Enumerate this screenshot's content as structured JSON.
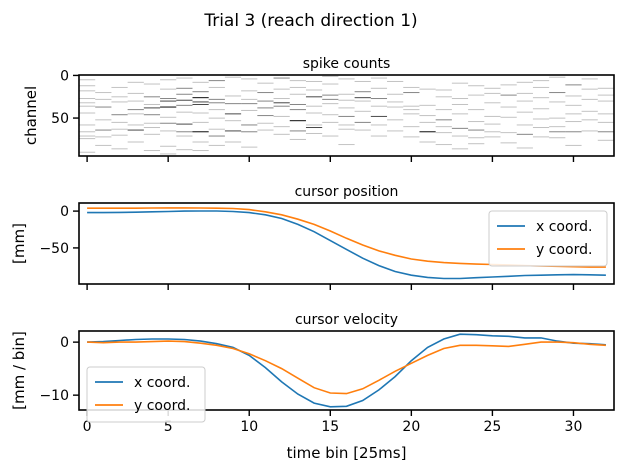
{
  "chart_data": [
    {
      "type": "heatmap",
      "suptitle": "Trial 3 (reach direction 1)",
      "title": "spike counts",
      "ylabel": "channel",
      "xlabel": "",
      "n_bins": 33,
      "n_channels": 95,
      "yticks": [
        0,
        50
      ],
      "ytick_labels": [
        "0",
        "50"
      ],
      "max_count": 4,
      "nonzero_by_bin": [
        "5:1 12:1 18:1 27:1 32:1 36:1 44:1 58:1 66:1 71:1 74:1 90:1",
        "20:1 28:1 37:2 52:1 64:2 72:1 82:1",
        "14:1 25:1 31:1 46:2 55:1 63:1 70:1 86:1",
        "8:1 21:1 30:1 40:2 45:1 58:1 64:3 78:1",
        "10:1 25:2 34:1 38:3 46:2 56:1 61:1 69:1 88:1",
        "5:1 16:1 27:2 30:3 37:4 49:1 56:2 65:1 83:1 92:1",
        "3:1 15:2 22:2 29:3 35:2 43:1 57:3 66:2 71:1 87:1",
        "8:1 19:2 26:4 31:3 34:3 44:1 55:1 66:4 78:1 88:1",
        "6:2 14:1 28:2 32:2 40:1 50:1 63:1 71:2 82:1",
        "2:1 24:1 33:2 45:3 53:1 65:3 78:1",
        "4:1 18:1 28:1 33:2 41:1 58:2 66:2 84:1",
        "9:1 20:2 30:2 38:2 47:2 56:1 64:1",
        "3:2 16:1 27:1 32:3 36:2 48:1 60:1 69:1",
        "6:1 14:1 22:1 34:2 40:2 53:4 65:2 75:1",
        "7:1 17:1 25:3 36:1 44:1 58:1 61:3 68:1",
        "1:1 10:1 23:2 28:2 33:1 46:1 55:1 71:1",
        "4:1 22:1 29:1 38:1 48:2 58:1 63:1 81:1",
        "7:1 19:2 26:3 30:1 42:1 55:2 64:1",
        "3:1 15:1 27:2 36:1 48:3 58:1 71:1",
        "7:1 22:1 31:1 37:1 52:1 65:1",
        "14:1 20:2 36:1 40:1 45:1 60:1 72:1",
        "16:1 35:1 47:1 55:1 66:4 78:1",
        "17:1 25:1 40:1 52:2 60:1 67:1 81:1",
        "9:1 27:1 34:1 45:1 62:2 71:1 86:1",
        "12:1 23:1 40:1 54:1 64:2 73:1 80:1",
        "15:1 21:1 32:1 48:1 57:1 66:1 72:1",
        "11:1 23:2 37:1 49:1 67:1 79:1",
        "8:1 21:1 30:1 43:1 58:1 69:2 85:1",
        "6:1 14:1 26:1 39:1 51:1 61:1 72:1",
        "2:1 20:2 31:1 50:1 60:1 66:2 73:1",
        "11:2 24:1 35:1 45:1 54:1 66:2 82:1",
        "4:1 16:1 28:1 42:1 52:1 65:1",
        "15:1 23:1 30:1 45:1 55:1 66:2 76:1"
      ]
    },
    {
      "type": "line",
      "title": "cursor position",
      "ylabel": "[mm]",
      "xlabel": "",
      "ylim": [
        -99,
        11
      ],
      "yticks": [
        0,
        -50
      ],
      "ytick_labels": [
        "0",
        "−50"
      ],
      "legend_position": "right",
      "x": [
        0,
        1,
        2,
        3,
        4,
        5,
        6,
        7,
        8,
        9,
        10,
        11,
        12,
        13,
        14,
        15,
        16,
        17,
        18,
        19,
        20,
        21,
        22,
        23,
        24,
        25,
        26,
        27,
        28,
        29,
        30,
        31,
        32
      ],
      "series": [
        {
          "name": "x coord.",
          "color": "#1f77b4",
          "values": [
            -2,
            -2,
            -1.8,
            -1.5,
            -1,
            -0.5,
            0,
            0.2,
            0.2,
            -0.5,
            -2,
            -5,
            -10,
            -18,
            -28,
            -40,
            -52,
            -64,
            -74,
            -82,
            -87,
            -90,
            -91.5,
            -91.5,
            -90.5,
            -89.5,
            -88.5,
            -87.5,
            -87,
            -86.5,
            -86.3,
            -86.5,
            -87
          ]
        },
        {
          "name": "y coord.",
          "color": "#ff7f0e",
          "values": [
            4,
            4,
            4,
            4,
            4.2,
            4.3,
            4.3,
            4.2,
            4,
            3.5,
            2,
            -1,
            -5,
            -11,
            -18,
            -27,
            -37,
            -46,
            -54,
            -60,
            -65,
            -68,
            -70,
            -71,
            -72,
            -72.5,
            -73,
            -74,
            -74.5,
            -75,
            -75.5,
            -76,
            -76
          ]
        }
      ]
    },
    {
      "type": "line",
      "title": "cursor velocity",
      "ylabel": "[mm / bin]",
      "xlabel": "time bin [25ms]",
      "ylim": [
        -12.8,
        2.1
      ],
      "yticks": [
        0,
        -10
      ],
      "ytick_labels": [
        "0",
        "−10"
      ],
      "xticks": [
        0,
        5,
        10,
        15,
        20,
        25,
        30
      ],
      "xtick_labels": [
        "0",
        "5",
        "10",
        "15",
        "20",
        "25",
        "30"
      ],
      "xlim": [
        -0.5,
        32.5
      ],
      "legend_position": "lower left",
      "x": [
        0,
        1,
        2,
        3,
        4,
        5,
        6,
        7,
        8,
        9,
        10,
        11,
        12,
        13,
        14,
        15,
        16,
        17,
        18,
        19,
        20,
        21,
        22,
        23,
        24,
        25,
        26,
        27,
        28,
        29,
        30,
        31,
        32
      ],
      "series": [
        {
          "name": "x coord.",
          "color": "#1f77b4",
          "values": [
            0,
            0.1,
            0.3,
            0.5,
            0.6,
            0.6,
            0.5,
            0.2,
            -0.3,
            -1,
            -2.5,
            -4.8,
            -7.5,
            -9.8,
            -11.5,
            -12.2,
            -12.1,
            -11,
            -9,
            -6.5,
            -3.5,
            -1,
            0.6,
            1.5,
            1.4,
            1.2,
            1.1,
            0.8,
            0.8,
            0.2,
            -0.2,
            -0.3,
            -0.5
          ]
        },
        {
          "name": "y coord.",
          "color": "#ff7f0e",
          "values": [
            0,
            -0.1,
            0,
            0,
            0.1,
            0.2,
            0.1,
            -0.2,
            -0.6,
            -1.2,
            -2.2,
            -3.5,
            -5,
            -6.8,
            -8.6,
            -9.6,
            -9.7,
            -8.8,
            -7.2,
            -5.5,
            -4,
            -2.5,
            -1.2,
            -0.6,
            -0.6,
            -0.7,
            -0.8,
            -0.4,
            0,
            0,
            -0.1,
            -0.4,
            -0.6
          ]
        }
      ]
    }
  ]
}
